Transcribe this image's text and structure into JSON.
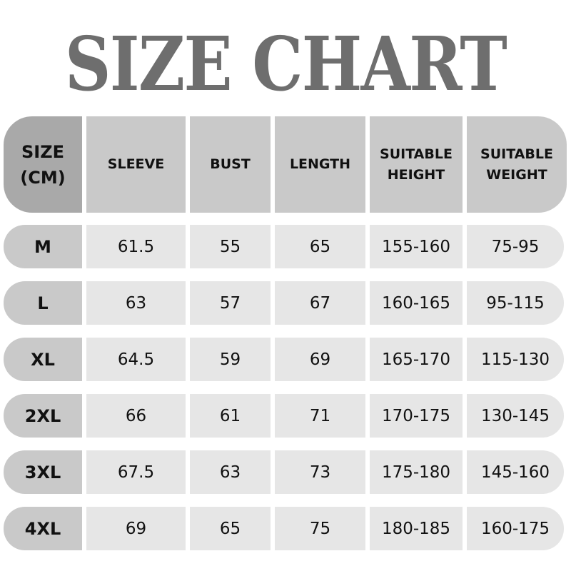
{
  "title": "SIZE CHART",
  "colors": {
    "title": "#6e6e6e",
    "header_size_cell": "#a9a9a9",
    "header_cell": "#c9c9c9",
    "row_size_cell": "#c9c9c9",
    "row_cell": "#e6e6e6"
  },
  "headers": [
    [
      "SIZE",
      "(CM)"
    ],
    [
      "SLEEVE"
    ],
    [
      "BUST"
    ],
    [
      "LENGTH"
    ],
    [
      "SUITABLE",
      "HEIGHT"
    ],
    [
      "SUITABLE",
      "WEIGHT"
    ]
  ],
  "rows": [
    [
      "M",
      "61.5",
      "55",
      "65",
      "155-160",
      "75-95"
    ],
    [
      "L",
      "63",
      "57",
      "67",
      "160-165",
      "95-115"
    ],
    [
      "XL",
      "64.5",
      "59",
      "69",
      "165-170",
      "115-130"
    ],
    [
      "2XL",
      "66",
      "61",
      "71",
      "170-175",
      "130-145"
    ],
    [
      "3XL",
      "67.5",
      "63",
      "73",
      "175-180",
      "145-160"
    ],
    [
      "4XL",
      "69",
      "65",
      "75",
      "180-185",
      "160-175"
    ]
  ]
}
